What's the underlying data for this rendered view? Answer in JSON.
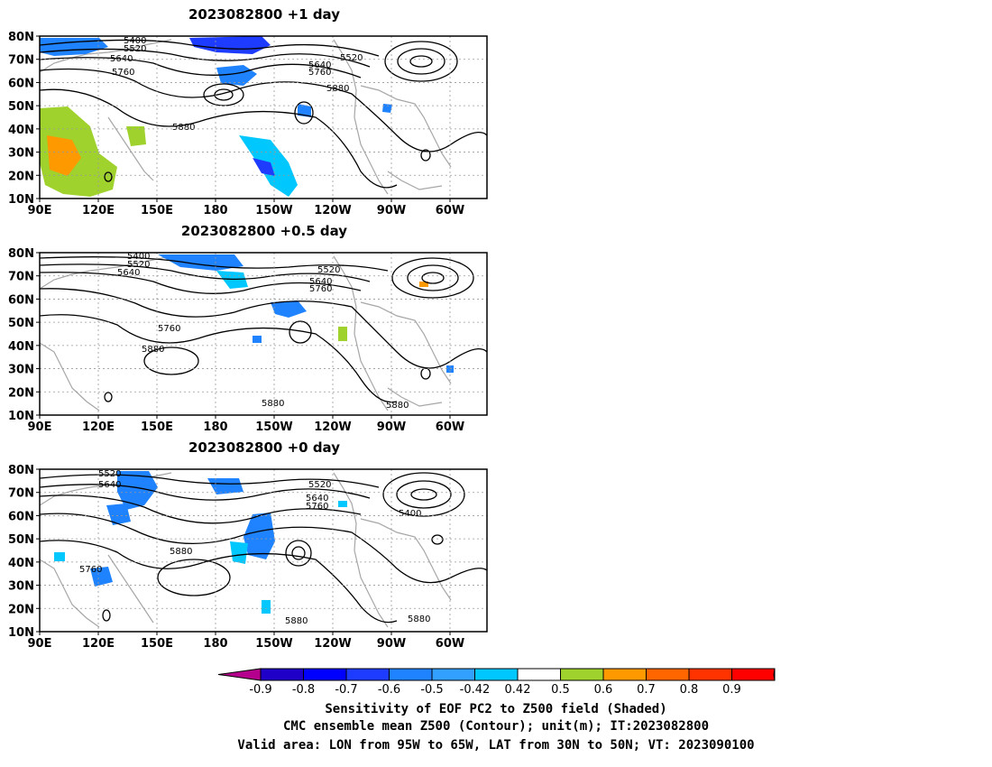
{
  "panels": [
    {
      "title": "2023082800  +1 day",
      "contour_labels": [
        "5400",
        "5520",
        "5640",
        "5760",
        "5520",
        "5640",
        "5760",
        "5880",
        "5880"
      ]
    },
    {
      "title": "2023082800  +0.5 day",
      "contour_labels": [
        "5400",
        "5520",
        "5640",
        "5520",
        "5640",
        "5760",
        "5760",
        "5880",
        "5880",
        "5880"
      ]
    },
    {
      "title": "2023082800  +0 day",
      "contour_labels": [
        "5520",
        "5640",
        "5520",
        "5640",
        "5760",
        "5400",
        "5880",
        "5760",
        "5880",
        "5880"
      ]
    }
  ],
  "lat_ticks": [
    "80N",
    "70N",
    "60N",
    "50N",
    "40N",
    "30N",
    "20N",
    "10N"
  ],
  "lon_ticks": [
    "90E",
    "120E",
    "150E",
    "180",
    "150W",
    "120W",
    "90W",
    "60W"
  ],
  "colorbar": {
    "ticks": [
      "-0.9",
      "-0.8",
      "-0.7",
      "-0.6",
      "-0.5",
      "-0.42",
      "0.42",
      "0.5",
      "0.6",
      "0.7",
      "0.8",
      "0.9"
    ],
    "colors": [
      "#b4008c",
      "#1e00c8",
      "#0000ff",
      "#1e3cff",
      "#1f82ff",
      "#32a0ff",
      "#00c8ff",
      "#ffffff",
      "#a0d22d",
      "#ff9900",
      "#ff6600",
      "#ff3300",
      "#ff0000",
      "#ff9ecc"
    ]
  },
  "footer": {
    "line1": "Sensitivity of EOF PC2 to Z500 field (Shaded)",
    "line2": "CMC ensemble mean Z500 (Contour); unit(m); IT:2023082800",
    "line3": "Valid area: LON from 95W to 65W, LAT from 30N to 50N; VT: 2023090100"
  }
}
